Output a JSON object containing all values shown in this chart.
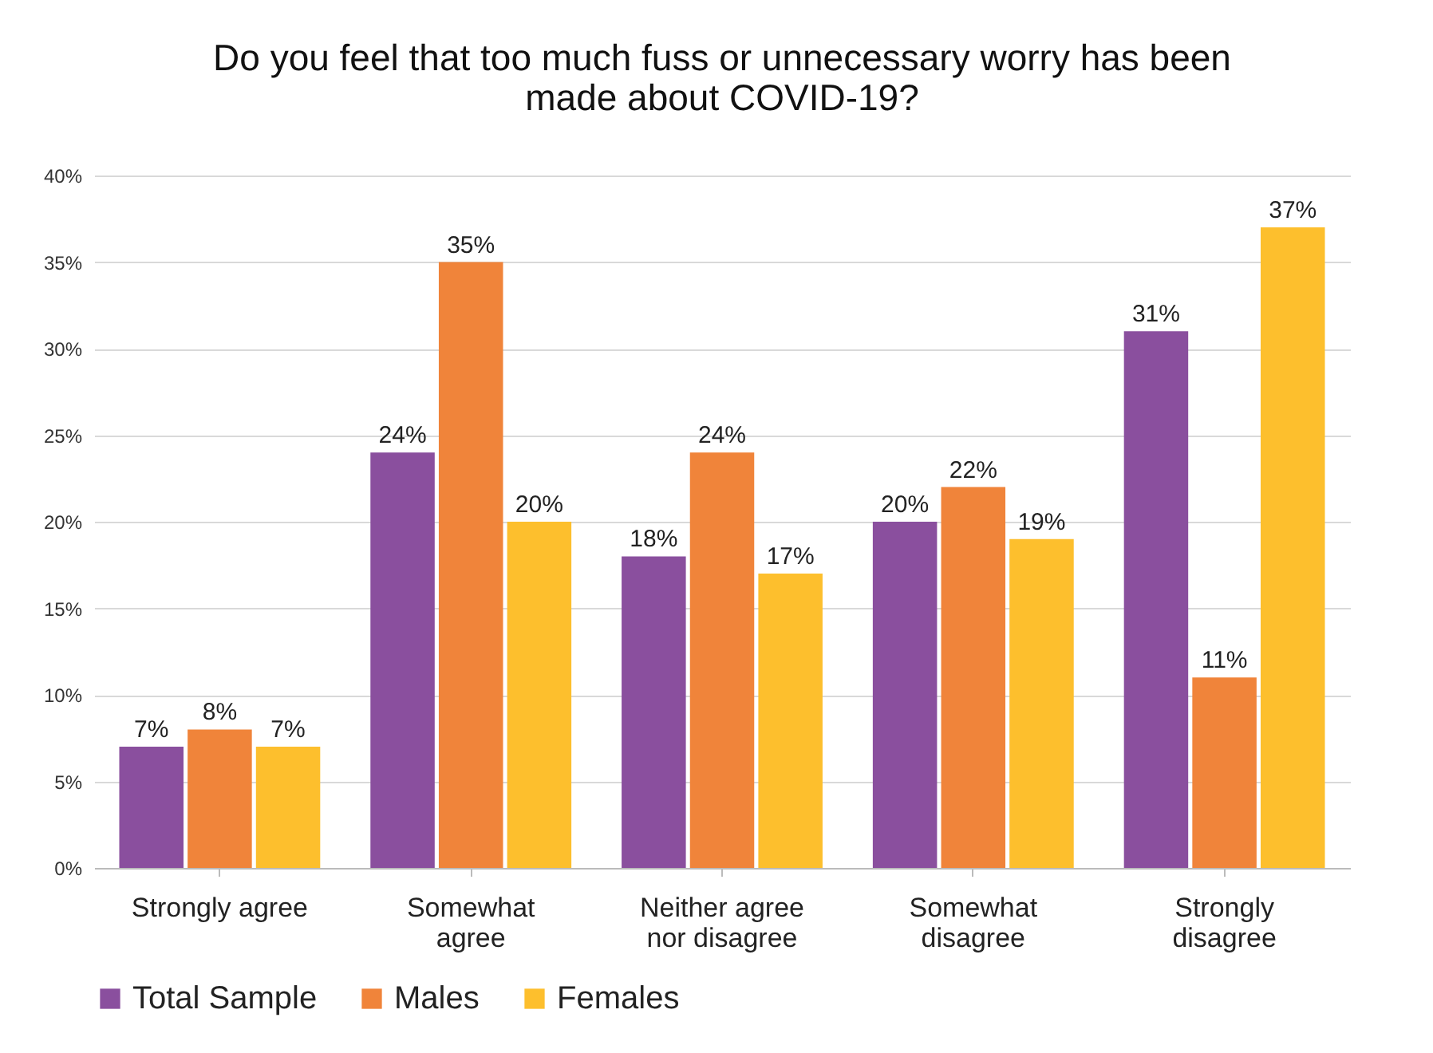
{
  "chart_data": {
    "type": "bar",
    "title": "Do you feel that too much fuss or unnecessary worry has been made about COVID-19?",
    "categories": [
      "Strongly agree",
      "Somewhat agree",
      "Neither agree nor disagree",
      "Somewhat disagree",
      "Strongly disagree"
    ],
    "series": [
      {
        "name": "Total Sample",
        "color": "#8a4f9e",
        "values": [
          7,
          24,
          18,
          20,
          31
        ],
        "value_labels": [
          "7%",
          "24%",
          "18%",
          "20%",
          "31%"
        ]
      },
      {
        "name": "Males",
        "color": "#f0843a",
        "values": [
          8,
          35,
          24,
          22,
          11
        ],
        "value_labels": [
          "8%",
          "35%",
          "24%",
          "22%",
          "11%"
        ]
      },
      {
        "name": "Females",
        "color": "#fdbf2d",
        "values": [
          7,
          20,
          17,
          19,
          37
        ],
        "value_labels": [
          "7%",
          "20%",
          "17%",
          "19%",
          "37%"
        ]
      }
    ],
    "ylim": [
      0,
      40
    ],
    "yticks": [
      {
        "value": 0,
        "label": "0%"
      },
      {
        "value": 5,
        "label": "5%"
      },
      {
        "value": 10,
        "label": "10%"
      },
      {
        "value": 15,
        "label": "15%"
      },
      {
        "value": 20,
        "label": "20%"
      },
      {
        "value": 25,
        "label": "25%"
      },
      {
        "value": 30,
        "label": "30%"
      },
      {
        "value": 35,
        "label": "35%"
      },
      {
        "value": 40,
        "label": "40%"
      }
    ],
    "grid": "y",
    "legend": "bottom"
  }
}
